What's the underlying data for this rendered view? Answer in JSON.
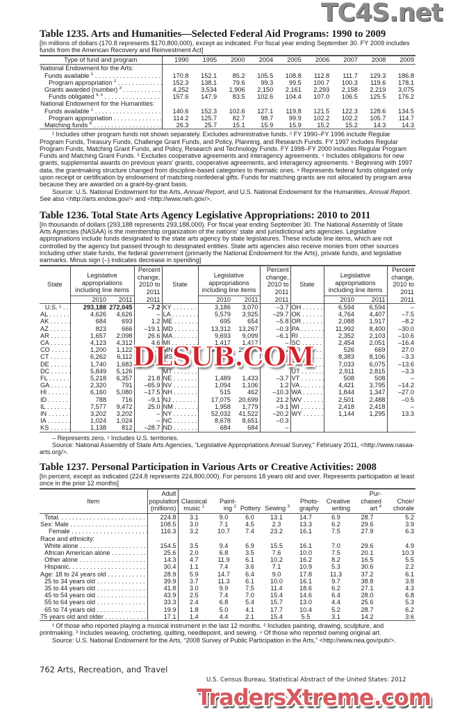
{
  "t1235": {
    "title": "Table 1235. Arts and Humanities—Selected Federal Aid Programs: 1990 to 2009",
    "headnote": "[In millions of dollars (170.8 represents $170,800,000), except as indicated. For fiscal year ending September 30. FY 2009 includes funds from the American Recovery and Reinvestment Act]",
    "col_label": "Type of fund and program",
    "years": [
      "1990",
      "1995",
      "2000",
      "2004",
      "2005",
      "2006",
      "2007",
      "2008",
      "2009"
    ],
    "rows": [
      {
        "label": "National Endowment for the Arts:",
        "note": "",
        "indent": 0,
        "values": []
      },
      {
        "label": "Funds available",
        "note": "1",
        "indent": 1,
        "values": [
          "170.8",
          "152.1",
          "85.2",
          "105.5",
          "108.8",
          "112.8",
          "111.7",
          "129.3",
          "186.8"
        ]
      },
      {
        "label": "Program appropriation",
        "note": "2",
        "indent": 2,
        "values": [
          "152.3",
          "138.1",
          "79.6",
          "99.3",
          "99.5",
          "100.7",
          "100.3",
          "119.6",
          "178.1"
        ]
      },
      {
        "label": "Grants awarded (number)",
        "note": "3",
        "indent": 1,
        "values": [
          "4,252",
          "3,534",
          "1,906",
          "2,150",
          "2,161",
          "2,293",
          "2,158",
          "2,219",
          "3,075"
        ]
      },
      {
        "label": "Funds obligated",
        "note": "4, 5",
        "indent": 2,
        "values": [
          "157.6",
          "147.9",
          "83.5",
          "102.6",
          "104.4",
          "107.0",
          "106.5",
          "125.5",
          "176.2"
        ]
      },
      {
        "label": "National Endowment for the Humanities:",
        "note": "",
        "indent": 0,
        "values": []
      },
      {
        "label": "Funds available",
        "note": "1",
        "indent": 1,
        "values": [
          "140.6",
          "152.3",
          "102.6",
          "127.1",
          "119.8",
          "121.5",
          "122.3",
          "128.6",
          "134.5"
        ]
      },
      {
        "label": "Program appropriation",
        "note": "",
        "indent": 2,
        "values": [
          "114.2",
          "125.7",
          "82.7",
          "98.7",
          "99.9",
          "102.2",
          "102.2",
          "105.7",
          "114.7"
        ]
      },
      {
        "label": "Matching funds",
        "note": "6",
        "indent": 1,
        "values": [
          "26.3",
          "25.7",
          "15.1",
          "15.9",
          "15.9",
          "15.2",
          "15.2",
          "14.3",
          "14.3"
        ]
      }
    ],
    "footnotes": "¹ Includes other program funds not shown separately. Excludes administrative funds. ² FY 1990–FY 1996 include Regular Program Funds, Treasury Funds, Challenge Grant Funds, and Policy, Planning, and Research Funds. FY 1997 includes Regular Program Funds, Matching Grant Funds, and Policy, Research and Technology Funds. FY 1998–FY 2000 includes Regular Program Funds and Matching Grant Funds. ³ Excludes cooperative agreements and interagency agreements. ⁴ Includes obligations for new grants, supplemental awards on previous years' grants, cooperative agreements, and interagency agreements. ⁵ Beginning with 1997 data, the grantmaking structure changed from discipline-based categories to thematic ones. ⁶ Represents federal funds obligated only upon receipt or certification by endowment of matching nonfederal gifts. Funds for matching grants are not allocated by program area because they are awarded on a grant-by-grant basis.",
    "source_a": "Source: U.S. National Endowment for the Arts, ",
    "source_b": "Annual Report",
    "source_c": ", and U.S. National Endowment for the Humanities, ",
    "source_d": "Annual Report",
    "source_e": ". See also <http://arts.endow.gov/> and <http://www.neh.gov/>."
  },
  "t1236": {
    "title": "Table 1236. Total State Arts Agency Legislative Appropriations: 2010 to 2011",
    "headnote": "[In thousands of dollars (293,188 represents 293,188,000). For fiscal year ending September 30. The National Assembly of State Arts Agencies (NASAA) is the membership organization of the nations' state and jurisdictional arts agencies. Legislative appropriations include funds designated to the state arts agency by state legislatures. These include line items, which are not controlled by the agency but passed through to designated entities. State arts agencies also receive monies from other sources including other state funds, the federal government (primarily the National Endowment for the Arts), private funds, and legislative earmarks. Minus sign (–) indicates decrease in spending]",
    "h_state": "State",
    "h_approp": "Legislative appropriations including line items",
    "h_pct": "Percent change, 2010 to 2011",
    "h_2010": "2010",
    "h_2011": "2011",
    "groups": [
      [
        [
          "U.S. ¹",
          "293,188",
          "272,045",
          "–7.2"
        ],
        [
          "AL",
          "4,626",
          "4,626",
          "–"
        ],
        [
          "AK",
          "684",
          "693",
          "1.2"
        ],
        [
          "AZ",
          "823",
          "666",
          "–19.1"
        ],
        [
          "AR",
          "1,657",
          "2,098",
          "26.6"
        ],
        [
          "CA",
          "4,123",
          "4,312",
          "4.6"
        ],
        [
          "CO",
          "1,200",
          "1,122",
          "–6.5"
        ],
        [
          "CT",
          "6,262",
          "6,112",
          ""
        ],
        [
          "DE",
          "1,740",
          "1,683",
          ""
        ],
        [
          "DC",
          "5,849",
          "5,126",
          ""
        ],
        [
          "FL",
          "5,218",
          "6,357",
          "21.8"
        ],
        [
          "GA",
          "2,320",
          "791",
          "–65.9"
        ],
        [
          "HI",
          "6,160",
          "5,080",
          "–17.5"
        ],
        [
          "ID",
          "788",
          "716",
          "–9.1"
        ],
        [
          "IL",
          "7,577",
          "9,472",
          "25.0"
        ],
        [
          "IN",
          "3,202",
          "3,202",
          "–"
        ],
        [
          "IA",
          "1,024",
          "1,024",
          "–"
        ],
        [
          "KS",
          "1,138",
          "812",
          "–28.7"
        ]
      ],
      [
        [
          "KY",
          "3,186",
          "3,070",
          "–3.7"
        ],
        [
          "LA",
          "5,579",
          "3,925",
          "–29.7"
        ],
        [
          "ME",
          "695",
          "654",
          "–5.8"
        ],
        [
          "MD",
          "13,312",
          "13,267",
          "–0.3"
        ],
        [
          "MA",
          "9,693",
          "9,099",
          "–6.1"
        ],
        [
          "MI",
          "1,417",
          "1,417",
          "–"
        ],
        [
          "MN",
          "30,015",
          "29,990",
          "–0.1"
        ],
        [
          "MS",
          "",
          "",
          ""
        ],
        [
          "MO",
          "",
          "",
          ""
        ],
        [
          "MT",
          "",
          "",
          ""
        ],
        [
          "NE",
          "1,489",
          "1,433",
          "–3.7"
        ],
        [
          "NV",
          "1,094",
          "1,106",
          "1.2"
        ],
        [
          "NH",
          "515",
          "462",
          "–10.3"
        ],
        [
          "NJ",
          "17,075",
          "20,699",
          "21.2"
        ],
        [
          "NM",
          "1,958",
          "1,779",
          "–9.1"
        ],
        [
          "NY",
          "52,032",
          "41,522",
          "–20.2"
        ],
        [
          "NC",
          "8,678",
          "8,651",
          "–0.3"
        ],
        [
          "ND",
          "684",
          "684",
          "–"
        ]
      ],
      [
        [
          "OH",
          "6,594",
          "6,594",
          "–"
        ],
        [
          "OK",
          "4,764",
          "4,407",
          "–7.5"
        ],
        [
          "OR",
          "2,088",
          "1,917",
          "–8.2"
        ],
        [
          "PA",
          "11,992",
          "8,400",
          "–30.0"
        ],
        [
          "RI",
          "2,352",
          "2,103",
          "–10.6"
        ],
        [
          "SC",
          "2,454",
          "2,051",
          "–16.4"
        ],
        [
          "SD",
          "526",
          "669",
          "27.0"
        ],
        [
          "TN",
          "8,383",
          "8,106",
          "–3.3"
        ],
        [
          "TX",
          "7,033",
          "6,075",
          "–13.6"
        ],
        [
          "UT",
          "2,911",
          "2,815",
          "–3.3"
        ],
        [
          "VT",
          "508",
          "508",
          "–"
        ],
        [
          "VA",
          "4,421",
          "3,795",
          "–14.2"
        ],
        [
          "WA",
          "1,844",
          "1,347",
          "–27.0"
        ],
        [
          "WV",
          "2,501",
          "2,488",
          "–0.5"
        ],
        [
          "WI",
          "2,418",
          "2,418",
          "–"
        ],
        [
          "WY",
          "1,144",
          "1,295",
          "13.3"
        ]
      ]
    ],
    "footnotes": "– Represents zero. ¹ Includes U.S. territories.",
    "source": "Source: National Assembly of State Arts Agencies, “Legislative Appropriations Annual Survey,” February 2011, <http://www.nasaa-arts.org/>."
  },
  "t1237": {
    "title": "Table 1237. Personal Participation in Various Arts or Creative Activities: 2008",
    "headnote": "[In percent, except as indicated (224.8 represents 224,800,000). For persons 18 years old and over. Represents participation at least once in the prior 12 months]",
    "headers": [
      {
        "text": "Item",
        "note": ""
      },
      {
        "text": "Adult population (millions)",
        "note": ""
      },
      {
        "text": "Classical music",
        "note": "1"
      },
      {
        "text": "Paint- ing",
        "note": "2"
      },
      {
        "text": "Pottery",
        "note": ""
      },
      {
        "text": "Sewing",
        "note": "3"
      },
      {
        "text": "Photo- graphy",
        "note": ""
      },
      {
        "text": "Creative writing",
        "note": ""
      },
      {
        "text": "Pur- chased art",
        "note": "4"
      },
      {
        "text": "Choir/ chorale",
        "note": ""
      }
    ],
    "rows": [
      {
        "label": "Total.",
        "indent": 1,
        "bold": true,
        "values": [
          "224.8",
          "3.1",
          "9.0",
          "6.0",
          "13.1",
          "14.7",
          "6.9",
          "28.7",
          "5.2"
        ]
      },
      {
        "label": "Sex: Male",
        "indent": 0,
        "values": [
          "108.5",
          "3.0",
          "7.1",
          "4.5",
          "2.3",
          "13.3",
          "6.2",
          "29.6",
          "3.9"
        ]
      },
      {
        "label": "Female",
        "indent": 2,
        "values": [
          "116.3",
          "3.2",
          "10.7",
          "7.4",
          "23.2",
          "16.1",
          "7.5",
          "27.9",
          "6.3"
        ]
      },
      {
        "label": "Race and ethnicity:",
        "indent": 0,
        "header": true,
        "values": []
      },
      {
        "label": "White alone",
        "indent": 1,
        "values": [
          "154.5",
          "3.5",
          "9.4",
          "6.9",
          "15.5",
          "16.1",
          "7.0",
          "29.6",
          "4.9"
        ]
      },
      {
        "label": "African American alone",
        "indent": 1,
        "values": [
          "25.6",
          "2.0",
          "6.8",
          "3.5",
          "7.6",
          "10.0",
          "7.5",
          "20.1",
          "10.3"
        ]
      },
      {
        "label": "Other alone",
        "indent": 1,
        "values": [
          "14.3",
          "4.7",
          "11.9",
          "6.1",
          "10.2",
          "16.2",
          "8.2",
          "16.5",
          "5.5"
        ]
      },
      {
        "label": "Hispanic.",
        "indent": 1,
        "values": [
          "30.4",
          "1.1",
          "7.4",
          "3.6",
          "7.1",
          "10.9",
          "5.3",
          "30.6",
          "2.2"
        ]
      },
      {
        "label": "Age: 18 to 24 years old",
        "indent": 0,
        "values": [
          "28.9",
          "5.9",
          "14.7",
          "6.4",
          "9.0",
          "17.8",
          "11.3",
          "37.2",
          "6.1"
        ]
      },
      {
        "label": "25 to 34 years old",
        "indent": 1,
        "values": [
          "39.9",
          "3.7",
          "11.3",
          "6.1",
          "10.0",
          "16.1",
          "9.7",
          "38.8",
          "3.8"
        ]
      },
      {
        "label": "35 to 44 years old",
        "indent": 1,
        "values": [
          "41.8",
          "3.0",
          "9.9",
          "7.5",
          "11.4",
          "18.6",
          "6.2",
          "27.1",
          "4.3"
        ]
      },
      {
        "label": "45 to 54 years old",
        "indent": 1,
        "values": [
          "43.9",
          "2.5",
          "7.4",
          "7.0",
          "15.4",
          "14.6",
          "6.4",
          "28.0",
          "6.8"
        ]
      },
      {
        "label": "55 to 64 years old",
        "indent": 1,
        "values": [
          "33.3",
          "2.4",
          "6.8",
          "5.4",
          "15.7",
          "13.0",
          "4.4",
          "25.6",
          "5.3"
        ]
      },
      {
        "label": "65 to 74 years old",
        "indent": 1,
        "values": [
          "19.9",
          "1.8",
          "5.0",
          "4.1",
          "17.7",
          "10.4",
          "5.2",
          "28.7",
          "6.2"
        ]
      },
      {
        "label": "75 years old and older",
        "indent": 0,
        "values": [
          "17.1",
          "1.4",
          "4.4",
          "2.1",
          "15.4",
          "5.5",
          "3.1",
          "14.2",
          "3.6"
        ]
      }
    ],
    "footnotes": "¹ Of those who reported playing a musical instrument in the last 12 months. ² Includes painting, drawing, sculpture, and printmaking. ³ Includes weaving, crocheting, quilting, needlepoint, and sewing. ⁴ Of those who reported owning original art.",
    "source": "Source: U.S. National Endowment for the Arts, “2008 Survey of Public Participation in the Arts,” <http://www.nea.gov/pub/>."
  },
  "footer": {
    "page": "762  Arts, Recreation, and Travel",
    "publication": "U.S. Census Bureau, Statistical Abstract of the United States: 2012"
  },
  "watermarks": {
    "top": "TC4S.net",
    "middle": "DLSUB.COM",
    "bottom": "TradersXtreme.com",
    "red": "#d3202a"
  }
}
